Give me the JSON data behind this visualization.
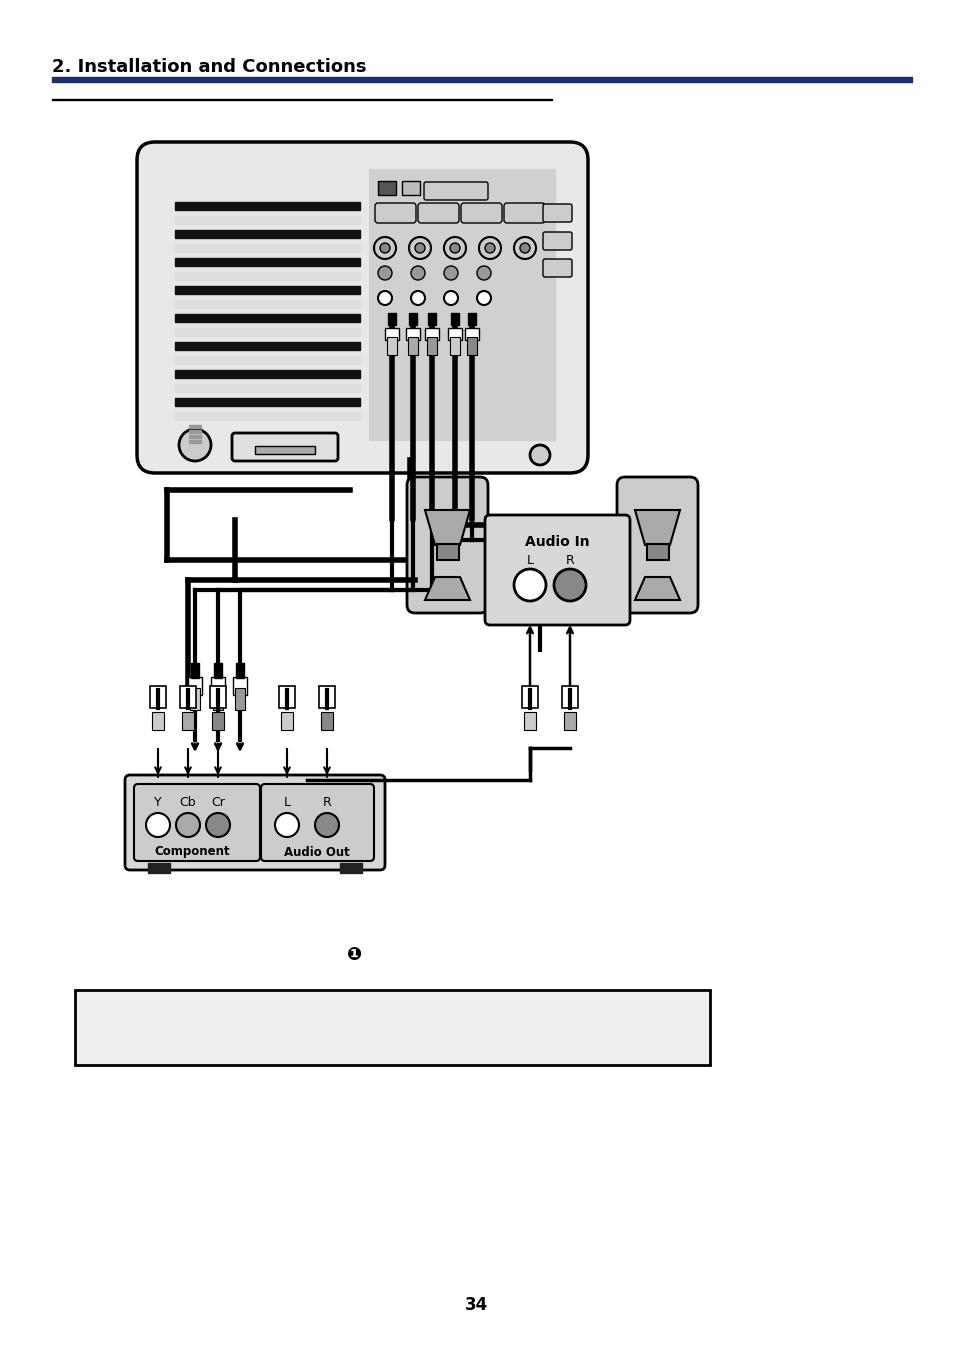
{
  "title": "2. Installation and Connections",
  "title_color": "#000000",
  "title_bar_color": "#1e2d6e",
  "page_number": "34",
  "bg": "#ffffff",
  "note_box_color": "#eeeeee",
  "circled_2": "❶"
}
